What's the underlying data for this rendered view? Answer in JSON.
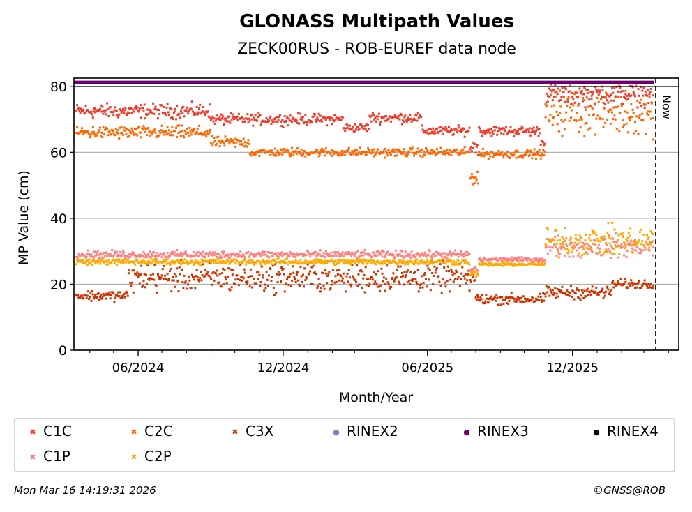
{
  "chart_data": {
    "type": "scatter",
    "title": "GLONASS Multipath Values",
    "subtitle": "ZECK00RUS - ROB-EUREF data node",
    "xlabel": "Month/Year",
    "ylabel": "MP Value (cm)",
    "ylim": [
      0,
      82.5
    ],
    "xlim": [
      "2024-03-12",
      "2026-04-14"
    ],
    "x_ticks": [
      {
        "label": "06/2024",
        "date": "2024-06-01"
      },
      {
        "label": "12/2024",
        "date": "2024-12-01"
      },
      {
        "label": "06/2025",
        "date": "2025-06-01"
      },
      {
        "label": "12/2025",
        "date": "2025-12-01"
      }
    ],
    "y_ticks": [
      {
        "label": "0",
        "value": 0
      },
      {
        "label": "20",
        "value": 20
      },
      {
        "label": "40",
        "value": 40
      },
      {
        "label": "60",
        "value": 60
      },
      {
        "label": "80",
        "value": 80
      }
    ],
    "grid": "y",
    "now_marker": {
      "label": "Now",
      "date": "2026-03-16"
    },
    "legend_position": "bottom",
    "series": [
      {
        "name": "C1C",
        "color": "#f03a2a",
        "marker": "x",
        "segments": [
          {
            "from": "2024-03-15",
            "to": "2024-09-01",
            "mean": 72.5,
            "spread": 2.0
          },
          {
            "from": "2024-09-01",
            "to": "2025-02-15",
            "mean": 70.0,
            "spread": 1.5
          },
          {
            "from": "2025-02-15",
            "to": "2025-03-20",
            "mean": 67.5,
            "spread": 1.2
          },
          {
            "from": "2025-03-20",
            "to": "2025-05-25",
            "mean": 70.5,
            "spread": 1.5
          },
          {
            "from": "2025-05-25",
            "to": "2025-07-25",
            "mean": 66.5,
            "spread": 1.3
          },
          {
            "from": "2025-07-25",
            "to": "2025-08-05",
            "mean": 62.0,
            "spread": 2.5
          },
          {
            "from": "2025-08-05",
            "to": "2025-10-22",
            "mean": 66.5,
            "spread": 1.4
          },
          {
            "from": "2025-10-22",
            "to": "2025-10-28",
            "mean": 63.0,
            "spread": 1.0
          },
          {
            "from": "2025-10-28",
            "to": "2026-03-14",
            "mean": 77.5,
            "spread": 3.0
          }
        ]
      },
      {
        "name": "C2C",
        "color": "#ff6600",
        "marker": "x",
        "segments": [
          {
            "from": "2024-03-15",
            "to": "2024-09-01",
            "mean": 66.0,
            "spread": 1.8
          },
          {
            "from": "2024-09-01",
            "to": "2024-10-20",
            "mean": 63.0,
            "spread": 1.5
          },
          {
            "from": "2024-10-20",
            "to": "2025-07-25",
            "mean": 60.0,
            "spread": 1.2
          },
          {
            "from": "2025-07-25",
            "to": "2025-08-05",
            "mean": 52.5,
            "spread": 2.0
          },
          {
            "from": "2025-08-05",
            "to": "2025-10-28",
            "mean": 59.5,
            "spread": 1.2
          },
          {
            "from": "2025-10-28",
            "to": "2026-03-14",
            "mean": 72.0,
            "spread": 6.0
          }
        ]
      },
      {
        "name": "C3X",
        "color": "#cc3300",
        "marker": "x",
        "segments": [
          {
            "from": "2024-03-15",
            "to": "2024-05-20",
            "mean": 16.5,
            "spread": 1.5
          },
          {
            "from": "2024-05-20",
            "to": "2025-08-01",
            "mean": 22.0,
            "spread": 4.0
          },
          {
            "from": "2025-08-01",
            "to": "2025-10-28",
            "mean": 15.5,
            "spread": 1.5
          },
          {
            "from": "2025-10-28",
            "to": "2026-01-20",
            "mean": 17.5,
            "spread": 1.8
          },
          {
            "from": "2026-01-20",
            "to": "2026-03-14",
            "mean": 20.0,
            "spread": 1.3
          }
        ]
      },
      {
        "name": "RINEX2",
        "color": "#8080c0",
        "marker": "o",
        "segments": []
      },
      {
        "name": "RINEX3",
        "color": "#6b0070",
        "marker": "o",
        "segments": [
          {
            "from": "2024-03-12",
            "to": "2026-03-14",
            "mean": 81.2,
            "spread": 0
          }
        ]
      },
      {
        "name": "RINEX4",
        "color": "#1a0010",
        "marker": "o",
        "segments": []
      },
      {
        "name": "C1P",
        "color": "#ff8080",
        "marker": "x",
        "segments": [
          {
            "from": "2024-03-15",
            "to": "2025-07-25",
            "mean": 29.0,
            "spread": 1.0
          },
          {
            "from": "2025-07-25",
            "to": "2025-08-05",
            "mean": 24.5,
            "spread": 1.0
          },
          {
            "from": "2025-08-05",
            "to": "2025-10-28",
            "mean": 27.5,
            "spread": 0.6
          },
          {
            "from": "2025-10-28",
            "to": "2026-03-14",
            "mean": 31.5,
            "spread": 3.0
          }
        ]
      },
      {
        "name": "C2P",
        "color": "#ffaa00",
        "marker": "x",
        "segments": [
          {
            "from": "2024-03-15",
            "to": "2025-07-25",
            "mean": 26.8,
            "spread": 0.8
          },
          {
            "from": "2025-07-25",
            "to": "2025-08-05",
            "mean": 23.0,
            "spread": 1.0
          },
          {
            "from": "2025-08-05",
            "to": "2025-10-28",
            "mean": 26.0,
            "spread": 0.5
          },
          {
            "from": "2025-10-28",
            "to": "2026-03-14",
            "mean": 33.0,
            "spread": 4.0
          }
        ]
      }
    ]
  },
  "legend": {
    "items": [
      {
        "label": "C1C",
        "color": "#f03a2a",
        "icon": "x-marker-icon"
      },
      {
        "label": "C2C",
        "color": "#ff6600",
        "icon": "x-marker-icon"
      },
      {
        "label": "C3X",
        "color": "#cc3300",
        "icon": "x-marker-icon"
      },
      {
        "label": "RINEX2",
        "color": "#8080c0",
        "icon": "dot-marker-icon"
      },
      {
        "label": "RINEX3",
        "color": "#6b0070",
        "icon": "dot-marker-icon"
      },
      {
        "label": "RINEX4",
        "color": "#1a0010",
        "icon": "dot-marker-icon"
      },
      {
        "label": "C1P",
        "color": "#ff8080",
        "icon": "x-marker-icon"
      },
      {
        "label": "C2P",
        "color": "#ffaa00",
        "icon": "x-marker-icon"
      }
    ]
  },
  "footer": {
    "timestamp": "Mon Mar 16 14:19:31 2026",
    "credit": "©GNSS@ROB"
  }
}
